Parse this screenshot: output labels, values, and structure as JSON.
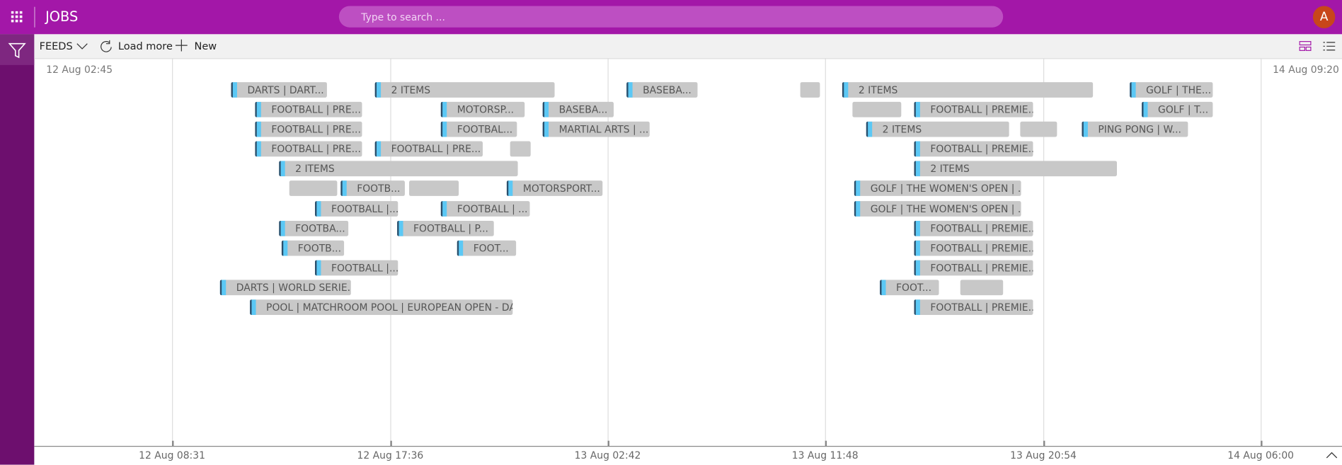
{
  "header": {
    "title": "JOBS",
    "search_placeholder": "Type to search ...",
    "avatar": "A"
  },
  "toolbar": {
    "feeds": "FEEDS",
    "load_more": "Load more",
    "new": "New"
  },
  "timeline": {
    "start": "12 Aug 02:45",
    "end": "14 Aug 09:20",
    "axis_labels": [
      "12 Aug 08:31",
      "12 Aug 17:36",
      "13 Aug 02:42",
      "13 Aug 11:48",
      "13 Aug 20:54",
      "14 Aug 06:00"
    ],
    "items": [
      "DARTS | DART...",
      "2 ITEMS",
      "BASEBA...",
      "2 ITEMS",
      "GOLF | THE...",
      "FOOTBALL | PRE...",
      "MOTORSP...",
      "BASEBA...",
      "FOOTBALL | PREMIE...",
      "GOLF | T...",
      "FOOTBALL | PRE...",
      "FOOTBAL...",
      "MARTIAL ARTS | ...",
      "2 ITEMS",
      "PING PONG | W...",
      "FOOTBALL | PRE...",
      "FOOTBALL | PRE...",
      "FOOTBALL | PREMIE...",
      "2 ITEMS",
      "2 ITEMS",
      "FOOTB...",
      "MOTORSPORT...",
      "GOLF | THE WOMEN'S OPEN | ...",
      "FOOTBALL |...",
      "FOOTBALL | ...",
      "GOLF | THE WOMEN'S OPEN | ...",
      "FOOTBA...",
      "FOOTBALL | P...",
      "FOOTBALL | PREMIE...",
      "FOOTB...",
      "FOOT...",
      "FOOTBALL | PREMIE...",
      "FOOTBALL |...",
      "FOOTBALL | PREMIE...",
      "DARTS | WORLD SERIE...",
      "FOOT...",
      "POOL | MATCHROOM POOL | EUROPEAN OPEN - DA...",
      "FOOTBALL | PREMIE..."
    ]
  }
}
